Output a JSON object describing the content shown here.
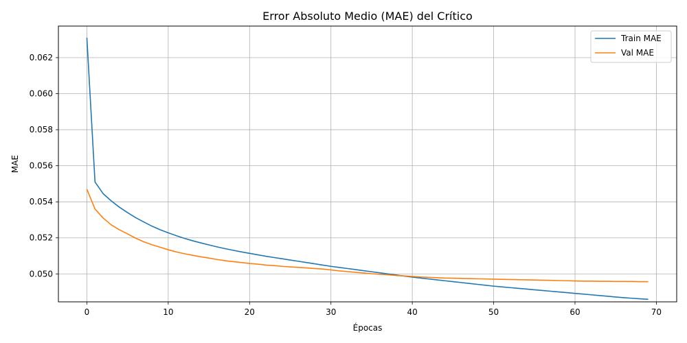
{
  "chart_data": {
    "type": "line",
    "title": "Error Absoluto Medio (MAE) del Crítico",
    "xlabel": "Épocas",
    "ylabel": "MAE",
    "xlim": [
      -3.5,
      72.5
    ],
    "ylim": [
      0.04845,
      0.06375
    ],
    "xticks": [
      0,
      10,
      20,
      30,
      40,
      50,
      60,
      70
    ],
    "yticks": [
      0.05,
      0.052,
      0.054,
      0.056,
      0.058,
      0.06,
      0.062
    ],
    "ytick_labels": [
      "0.050",
      "0.052",
      "0.054",
      "0.056",
      "0.058",
      "0.060",
      "0.062"
    ],
    "grid": true,
    "legend_position": "top-right",
    "series": [
      {
        "name": "Train MAE",
        "color": "#1f77b4",
        "values": [
          0.0631,
          0.0551,
          0.05445,
          0.05405,
          0.0537,
          0.0534,
          0.05312,
          0.05288,
          0.05265,
          0.05245,
          0.05228,
          0.05212,
          0.05197,
          0.05184,
          0.05172,
          0.05161,
          0.0515,
          0.0514,
          0.05131,
          0.05122,
          0.05114,
          0.05106,
          0.05098,
          0.05091,
          0.05084,
          0.05077,
          0.0507,
          0.05063,
          0.05056,
          0.05049,
          0.05042,
          0.05036,
          0.0503,
          0.05024,
          0.05018,
          0.05012,
          0.05006,
          0.05,
          0.04994,
          0.04988,
          0.04982,
          0.04977,
          0.04972,
          0.04967,
          0.04962,
          0.04957,
          0.04952,
          0.04947,
          0.04942,
          0.04937,
          0.04932,
          0.04928,
          0.04924,
          0.0492,
          0.04916,
          0.04912,
          0.04908,
          0.04904,
          0.049,
          0.04896,
          0.04892,
          0.04888,
          0.04884,
          0.0488,
          0.04876,
          0.04872,
          0.04868,
          0.04865,
          0.04862,
          0.04859
        ]
      },
      {
        "name": "Val MAE",
        "color": "#ff7f0e",
        "values": [
          0.0547,
          0.0536,
          0.0531,
          0.05272,
          0.05245,
          0.05222,
          0.05198,
          0.05178,
          0.05162,
          0.05148,
          0.05134,
          0.05122,
          0.05112,
          0.05103,
          0.05095,
          0.05088,
          0.0508,
          0.05073,
          0.05068,
          0.05063,
          0.05058,
          0.05054,
          0.05049,
          0.05046,
          0.05042,
          0.05039,
          0.05036,
          0.05033,
          0.0503,
          0.05027,
          0.05022,
          0.05017,
          0.05013,
          0.05009,
          0.05005,
          0.05001,
          0.04998,
          0.04995,
          0.04991,
          0.04989,
          0.04986,
          0.04983,
          0.04981,
          0.04979,
          0.04977,
          0.04976,
          0.04975,
          0.04974,
          0.04973,
          0.04972,
          0.04971,
          0.0497,
          0.04969,
          0.04968,
          0.04967,
          0.04966,
          0.04965,
          0.04964,
          0.04963,
          0.04962,
          0.04961,
          0.0496,
          0.0496,
          0.04959,
          0.04959,
          0.04958,
          0.04958,
          0.04958,
          0.04957,
          0.04957
        ]
      }
    ]
  }
}
